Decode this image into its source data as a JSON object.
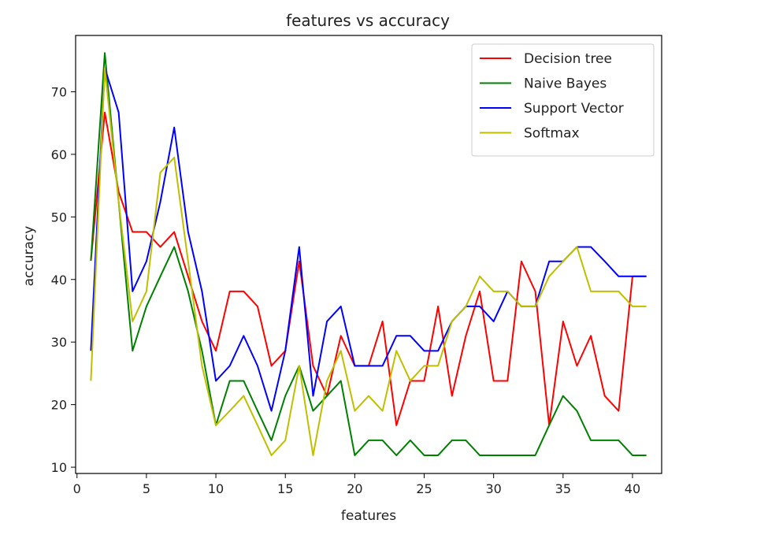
{
  "chart_data": {
    "type": "line",
    "title": "features vs accuracy",
    "xlabel": "features",
    "ylabel": "accuracy",
    "xlim": [
      -0.1,
      42.1
    ],
    "ylim": [
      9,
      79
    ],
    "xticks": [
      0,
      5,
      10,
      15,
      20,
      25,
      30,
      35,
      40
    ],
    "yticks": [
      10,
      20,
      30,
      40,
      50,
      60,
      70
    ],
    "legend_position": "top-right",
    "grid": false,
    "x": [
      1,
      2,
      3,
      4,
      5,
      6,
      7,
      8,
      9,
      10,
      11,
      12,
      13,
      14,
      15,
      16,
      17,
      18,
      19,
      20,
      21,
      22,
      23,
      24,
      25,
      26,
      27,
      28,
      29,
      30,
      31,
      32,
      33,
      34,
      35,
      36,
      37,
      38,
      39,
      40,
      41
    ],
    "series": [
      {
        "name": "Decision tree",
        "color": "#ff0000",
        "values": [
          43,
          66.7,
          54,
          47.6,
          47.6,
          45.2,
          47.6,
          40.5,
          33.3,
          28.6,
          38.1,
          38.1,
          35.7,
          26.2,
          28.6,
          42.9,
          26.2,
          21.4,
          31,
          26.2,
          26.2,
          33.3,
          16.7,
          23.8,
          23.8,
          35.7,
          21.4,
          31,
          38.1,
          23.8,
          23.8,
          42.9,
          38.1,
          16.7,
          33.3,
          26.2,
          31,
          21.4,
          19,
          40.5,
          40.5
        ]
      },
      {
        "name": "Naive Bayes",
        "color": "#008000",
        "values": [
          43,
          76.2,
          52.4,
          28.6,
          35.7,
          40.5,
          45.2,
          38.1,
          28.6,
          16.7,
          23.8,
          23.8,
          19,
          14.3,
          21.4,
          26.2,
          19,
          21.4,
          23.8,
          11.9,
          14.3,
          14.3,
          11.9,
          14.3,
          11.9,
          11.9,
          14.3,
          14.3,
          11.9,
          11.9,
          11.9,
          11.9,
          11.9,
          16.7,
          21.4,
          19,
          14.3,
          14.3,
          14.3,
          11.9,
          11.9
        ]
      },
      {
        "name": "Support Vector",
        "color": "#0000ff",
        "values": [
          28.6,
          73.8,
          66.7,
          38.1,
          42.9,
          52.4,
          64.3,
          47.6,
          38.1,
          23.8,
          26.2,
          31,
          26.2,
          19,
          28.6,
          45.2,
          21.4,
          33.3,
          35.7,
          26.2,
          26.2,
          26.2,
          31,
          31,
          28.6,
          28.6,
          33.3,
          35.7,
          35.7,
          33.3,
          38.1,
          35.7,
          35.7,
          42.9,
          42.9,
          45.2,
          45.2,
          42.9,
          40.5,
          40.5,
          40.5
        ]
      },
      {
        "name": "Softmax",
        "color": "#bfbf00",
        "values": [
          23.8,
          73.8,
          52.4,
          33.3,
          38.1,
          57.1,
          59.5,
          42.9,
          26.2,
          16.7,
          19,
          21.4,
          16.7,
          11.9,
          14.3,
          26.2,
          11.9,
          23.8,
          28.6,
          19,
          21.4,
          19,
          28.6,
          23.8,
          26.2,
          26.2,
          33.3,
          35.7,
          40.5,
          38.1,
          38.1,
          35.7,
          35.7,
          40.5,
          42.9,
          45.2,
          38.1,
          38.1,
          38.1,
          35.7,
          35.7
        ]
      }
    ]
  }
}
